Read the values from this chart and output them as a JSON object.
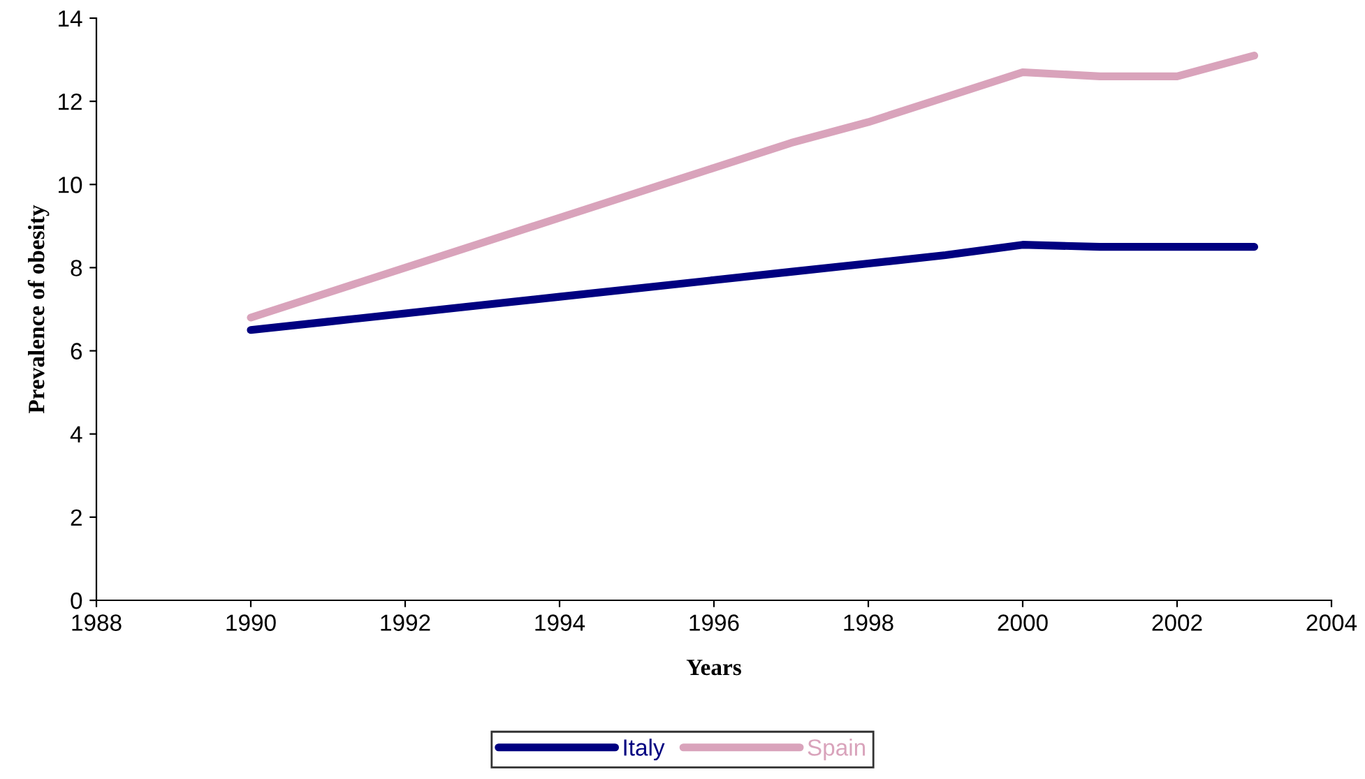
{
  "chart_data": {
    "type": "line",
    "xlabel": "Years",
    "ylabel": "Prevalence of obesity",
    "x": [
      1990,
      1991,
      1992,
      1993,
      1994,
      1995,
      1996,
      1997,
      1998,
      1999,
      2000,
      2001,
      2002,
      2003
    ],
    "series": [
      {
        "name": "Italy",
        "color": "#000080",
        "values": [
          6.5,
          6.7,
          6.9,
          7.1,
          7.3,
          7.5,
          7.7,
          7.9,
          8.1,
          8.3,
          8.55,
          8.5,
          8.5,
          8.5
        ]
      },
      {
        "name": "Spain",
        "color": "#d9a3bb",
        "values": [
          6.8,
          7.4,
          8.0,
          8.6,
          9.2,
          9.8,
          10.4,
          11.0,
          11.5,
          12.1,
          12.7,
          12.6,
          12.6,
          13.1
        ]
      }
    ],
    "xlim": [
      1988,
      2004
    ],
    "xticks": [
      1988,
      1990,
      1992,
      1994,
      1996,
      1998,
      2000,
      2002,
      2004
    ],
    "ylim": [
      0,
      14
    ],
    "yticks": [
      0,
      2,
      4,
      6,
      8,
      10,
      12,
      14
    ],
    "grid": false,
    "legend": "bottom",
    "marker": "none",
    "line_style": "solid"
  }
}
